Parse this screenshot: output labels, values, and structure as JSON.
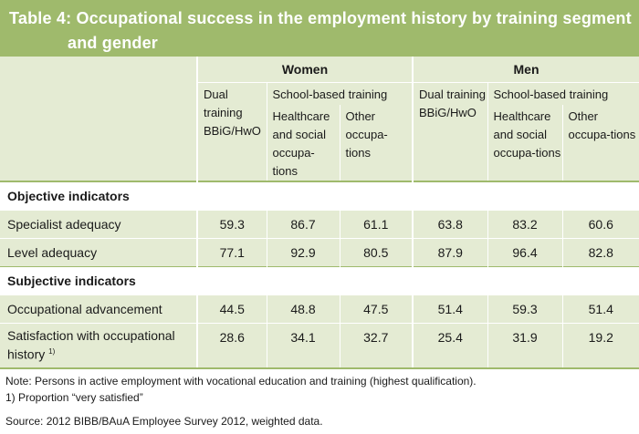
{
  "title": {
    "line1": "Table 4: Occupational success in the employment history by training segment",
    "line2": "and gender"
  },
  "header": {
    "women": "Women",
    "men": "Men",
    "dual": "Dual training BBiG/HwO",
    "school_based": "School-based training",
    "healthcare": "Healthcare and social occupa-tions",
    "other": "Other occupa-tions"
  },
  "sections": {
    "objective": "Objective indicators",
    "subjective": "Subjective indicators"
  },
  "rows": {
    "specialist": {
      "label": "Specialist adequacy",
      "values": [
        "59.3",
        "86.7",
        "61.1",
        "63.8",
        "83.2",
        "60.6"
      ]
    },
    "level": {
      "label": "Level adequacy",
      "values": [
        "77.1",
        "92.9",
        "80.5",
        "87.9",
        "96.4",
        "82.8"
      ]
    },
    "advancement": {
      "label": "Occupational advancement",
      "values": [
        "44.5",
        "48.8",
        "47.5",
        "51.4",
        "59.3",
        "51.4"
      ]
    },
    "satisfaction": {
      "label": "Satisfaction with occupational history",
      "footnote_mark": "1)",
      "values": [
        "28.6",
        "34.1",
        "32.7",
        "25.4",
        "31.9",
        "19.2"
      ]
    }
  },
  "notes": {
    "note": "Note: Persons in active employment with vocational education and training (highest qualification).",
    "footnote": "1)  Proportion “very satisfied”",
    "source": "Source: 2012 BIBB/BAuA Employee Survey 2012, weighted data."
  },
  "colors": {
    "accent": "#9fba6c",
    "light_fill": "#e4ebd3"
  }
}
